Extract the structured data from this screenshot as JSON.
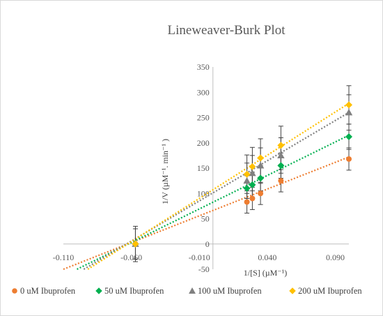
{
  "chart_data": {
    "type": "scatter",
    "title": "Lineweaver-Burk Plot",
    "xlabel": "1/[S] (µM⁻¹)",
    "ylabel": "1/V (µM⁻¹. min⁻¹ )",
    "xlim": [
      -0.11,
      0.1
    ],
    "ylim": [
      -50,
      350
    ],
    "x_ticks": [
      "-0.110",
      "-0.060",
      "-0.010",
      "0.040",
      "0.090"
    ],
    "y_ticks": [
      "350",
      "300",
      "250",
      "200",
      "150",
      "100",
      "50",
      "0",
      "-50"
    ],
    "legend_position": "bottom",
    "grid": false,
    "trendlines": "dotted linear fits per series",
    "series": [
      {
        "name": "0 uM Ibuprofen",
        "marker": "circle",
        "color": "#ED7D31",
        "x": [
          -0.057,
          0.025,
          0.029,
          0.035,
          0.05,
          0.1
        ],
        "y": [
          0,
          83,
          90,
          100,
          125,
          168
        ],
        "err": [
          35,
          22,
          22,
          22,
          22,
          22
        ],
        "fit": {
          "x_from": -0.11,
          "x_to": 0.1,
          "y_from": -50,
          "y_to": 172
        }
      },
      {
        "name": "50 uM Ibuprofen",
        "marker": "diamond",
        "color": "#00B050",
        "x": [
          -0.057,
          0.025,
          0.029,
          0.035,
          0.05,
          0.1
        ],
        "y": [
          0,
          110,
          117,
          130,
          155,
          212
        ],
        "err": [
          30,
          25,
          25,
          25,
          25,
          25
        ],
        "fit": {
          "x_from": -0.1,
          "x_to": 0.1,
          "y_from": -50,
          "y_to": 215
        }
      },
      {
        "name": "100 uM Ibuprofen",
        "marker": "triangle",
        "color": "#808080",
        "x": [
          -0.057,
          0.025,
          0.029,
          0.035,
          0.05,
          0.1
        ],
        "y": [
          0,
          125,
          140,
          155,
          175,
          260
        ],
        "err": [
          30,
          35,
          35,
          35,
          35,
          35
        ],
        "fit": {
          "x_from": -0.095,
          "x_to": 0.1,
          "y_from": -50,
          "y_to": 260
        }
      },
      {
        "name": "200 uM Ibuprofen",
        "marker": "diamond",
        "color": "#FFC000",
        "x": [
          -0.057,
          0.025,
          0.029,
          0.035,
          0.05,
          0.1
        ],
        "y": [
          0,
          138,
          153,
          170,
          195,
          275
        ],
        "err": [
          30,
          38,
          38,
          38,
          38,
          38
        ],
        "fit": {
          "x_from": -0.092,
          "x_to": 0.1,
          "y_from": -50,
          "y_to": 278
        }
      }
    ]
  }
}
